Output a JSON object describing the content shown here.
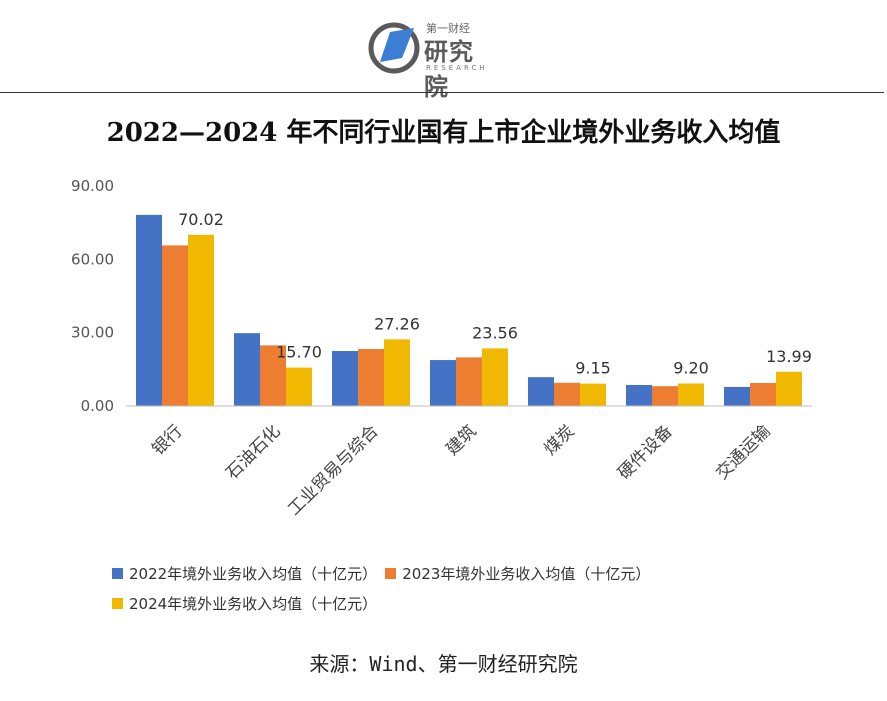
{
  "logo": {
    "top_text": "第一财经",
    "main_text": "研究院",
    "sub_text": "RESEARCH"
  },
  "title": "2022—2024 年不同行业国有上市企业境外业务收入均值",
  "source": "来源：Wind、第一财经研究院",
  "colors": {
    "s2022": "#4472C4",
    "s2023": "#ED7D31",
    "s2024": "#F0B800"
  },
  "chart_data": {
    "type": "bar",
    "title": "2022—2024 年不同行业国有上市企业境外业务收入均值",
    "ylim": [
      0,
      90
    ],
    "yticks": [
      "0.00",
      "30.00",
      "60.00",
      "90.00"
    ],
    "grid": false,
    "legend_position": "bottom",
    "categories": [
      "银行",
      "石油石化",
      "工业贸易与综合",
      "建筑",
      "煤炭",
      "硬件设备",
      "交通运输"
    ],
    "series": [
      {
        "name": "2022年境外业务收入均值（十亿元）",
        "values": [
          78.2,
          29.8,
          22.5,
          18.8,
          11.8,
          8.6,
          7.8
        ]
      },
      {
        "name": "2023年境外业务收入均值（十亿元）",
        "values": [
          65.7,
          24.8,
          23.3,
          19.9,
          9.5,
          8.1,
          9.4
        ]
      },
      {
        "name": "2024年境外业务收入均值（十亿元）",
        "values": [
          70.02,
          15.7,
          27.26,
          23.56,
          9.15,
          9.2,
          13.99
        ]
      }
    ],
    "data_labels": [
      "70.02",
      "15.70",
      "27.26",
      "23.56",
      "9.15",
      "9.20",
      "13.99"
    ]
  }
}
